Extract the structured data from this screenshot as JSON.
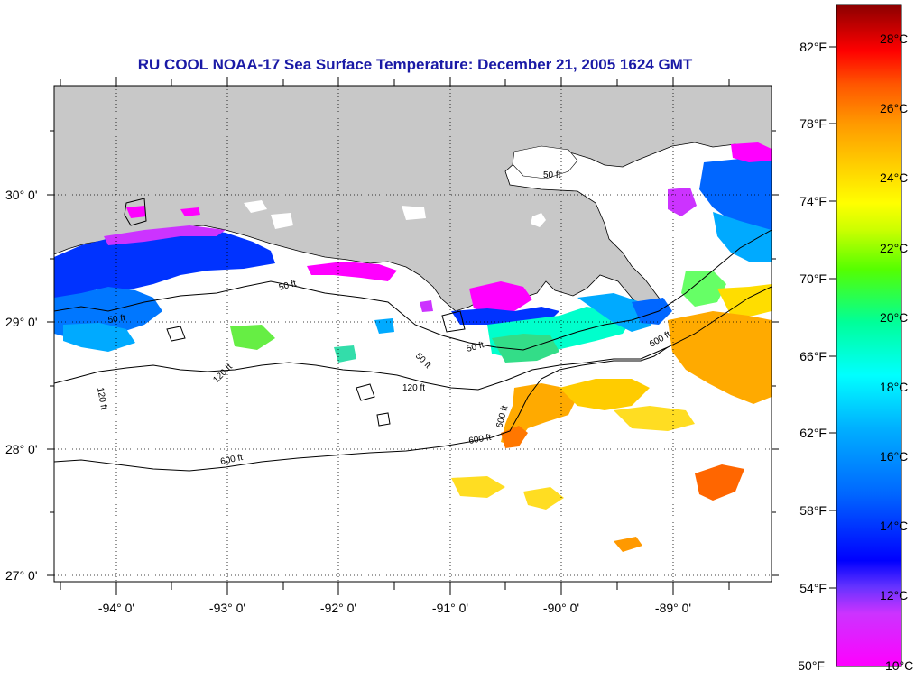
{
  "title": "RU COOL  NOAA-17  Sea Surface Temperature:  December 21, 2005 1624 GMT",
  "map": {
    "lon_range": [
      -94.55,
      -88.2
    ],
    "lat_range": [
      26.95,
      30.85
    ],
    "lat_ticks": [
      {
        "value": 30,
        "label": "30° 0'"
      },
      {
        "value": 29,
        "label": "29° 0'"
      },
      {
        "value": 28,
        "label": "28° 0'"
      },
      {
        "value": 27,
        "label": "27° 0'"
      }
    ],
    "lon_ticks": [
      {
        "value": -94,
        "label": "-94° 0'"
      },
      {
        "value": -93,
        "label": "-93° 0'"
      },
      {
        "value": -92,
        "label": "-92° 0'"
      },
      {
        "value": -91,
        "label": "-91° 0'"
      },
      {
        "value": -90,
        "label": "-90° 0'"
      },
      {
        "value": -89,
        "label": "-89° 0'"
      }
    ],
    "contour_labels": [
      "50 ft",
      "120 ft",
      "600 ft"
    ],
    "land_color": "#c8c8c8",
    "water_color": "#ffffff"
  },
  "colorbar": {
    "celsius_labels": [
      "28°C",
      "26°C",
      "24°C",
      "22°C",
      "20°C",
      "18°C",
      "16°C",
      "14°C",
      "12°C",
      "10°C"
    ],
    "fahrenheit_labels": [
      "82°F",
      "78°F",
      "74°F",
      "70°F",
      "66°F",
      "62°F",
      "58°F",
      "54°F",
      "50°F"
    ],
    "range_c": [
      10,
      29
    ],
    "colors": [
      "#ff00ff",
      "#cc33ff",
      "#0000ff",
      "#0066ff",
      "#00b0ff",
      "#00ffff",
      "#00ff99",
      "#55ff00",
      "#ccff00",
      "#ffff00",
      "#ffcc00",
      "#ff9900",
      "#ff5500",
      "#ff0000",
      "#cc0000",
      "#8b0000"
    ]
  }
}
